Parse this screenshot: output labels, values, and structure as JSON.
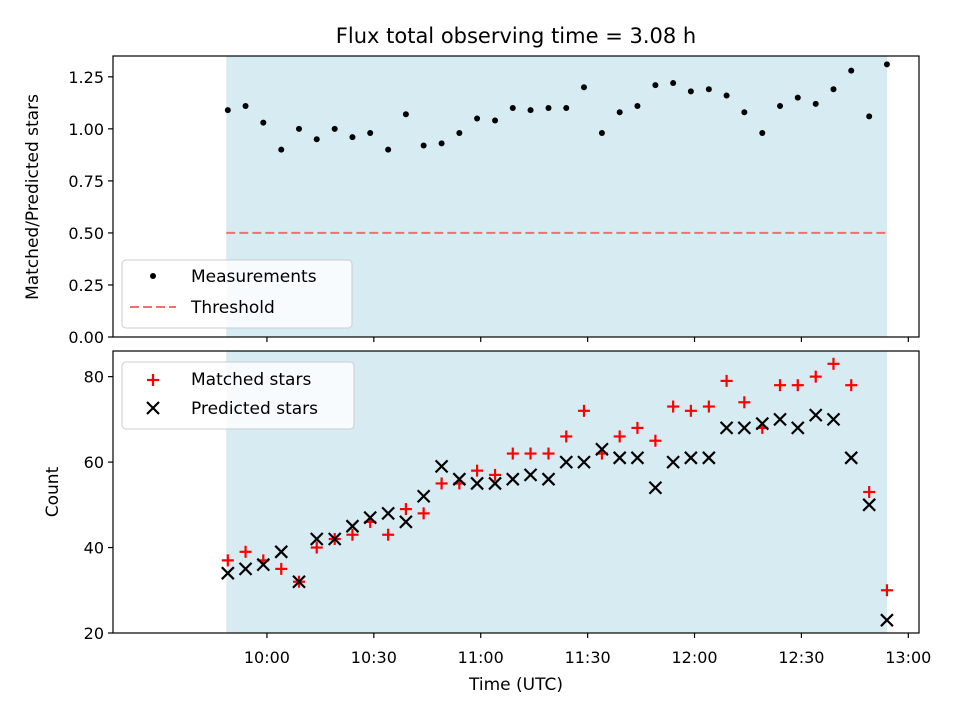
{
  "chart_data": {
    "title": "Flux total observing time = 3.08 h",
    "xlabel": "Time (UTC)",
    "x_ticks": [
      {
        "label": "10:00",
        "hour": 10.0
      },
      {
        "label": "10:30",
        "hour": 10.5
      },
      {
        "label": "11:00",
        "hour": 11.0
      },
      {
        "label": "11:30",
        "hour": 11.5
      },
      {
        "label": "12:00",
        "hour": 12.0
      },
      {
        "label": "12:30",
        "hour": 12.5
      },
      {
        "label": "13:00",
        "hour": 13.0
      }
    ],
    "xlim_hours": [
      9.28,
      13.05
    ],
    "shaded_span_hours": [
      9.81,
      12.9
    ],
    "times_hours": [
      9.817,
      9.9,
      9.983,
      10.067,
      10.15,
      10.233,
      10.317,
      10.4,
      10.483,
      10.567,
      10.65,
      10.733,
      10.817,
      10.9,
      10.983,
      11.067,
      11.15,
      11.233,
      11.317,
      11.4,
      11.483,
      11.567,
      11.65,
      11.733,
      11.817,
      11.9,
      11.983,
      12.067,
      12.15,
      12.233,
      12.317,
      12.4,
      12.483,
      12.567,
      12.65,
      12.733,
      12.817,
      12.9
    ],
    "top": {
      "type": "scatter",
      "ylabel": "Matched/Predicted stars",
      "ylim": [
        0.0,
        1.35
      ],
      "yticks": [
        "0.00",
        "0.25",
        "0.50",
        "0.75",
        "1.00",
        "1.25"
      ],
      "threshold": 0.5,
      "series": [
        {
          "name": "Measurements",
          "color": "#000000",
          "values": [
            1.09,
            1.11,
            1.03,
            0.9,
            1.0,
            0.95,
            1.0,
            0.96,
            0.98,
            0.9,
            1.07,
            0.92,
            0.93,
            0.98,
            1.05,
            1.04,
            1.1,
            1.09,
            1.1,
            1.1,
            1.2,
            0.98,
            1.08,
            1.11,
            1.21,
            1.22,
            1.18,
            1.19,
            1.16,
            1.08,
            0.98,
            1.11,
            1.15,
            1.12,
            1.19,
            1.28,
            1.06,
            1.31
          ]
        },
        {
          "name": "Threshold",
          "color": "#f07070"
        }
      ]
    },
    "bottom": {
      "type": "scatter",
      "ylabel": "Count",
      "ylim": [
        20,
        86
      ],
      "yticks": [
        "20",
        "40",
        "60",
        "80"
      ],
      "series": [
        {
          "name": "Matched stars",
          "color": "#ff0000",
          "marker": "+",
          "values": [
            37,
            39,
            37,
            35,
            32,
            40,
            42,
            43,
            46,
            43,
            49,
            48,
            55,
            55,
            58,
            57,
            62,
            62,
            62,
            66,
            72,
            62,
            66,
            68,
            65,
            73,
            72,
            73,
            79,
            74,
            68,
            78,
            78,
            80,
            83,
            78,
            53,
            30
          ]
        },
        {
          "name": "Predicted stars",
          "color": "#000000",
          "marker": "x",
          "values": [
            34,
            35,
            36,
            39,
            32,
            42,
            42,
            45,
            47,
            48,
            46,
            52,
            59,
            56,
            55,
            55,
            56,
            57,
            56,
            60,
            60,
            63,
            61,
            61,
            54,
            60,
            61,
            61,
            68,
            68,
            69,
            70,
            68,
            71,
            70,
            61,
            50,
            23
          ]
        }
      ]
    },
    "colors": {
      "span": "#add8e6",
      "threshold": "#f07070"
    }
  }
}
